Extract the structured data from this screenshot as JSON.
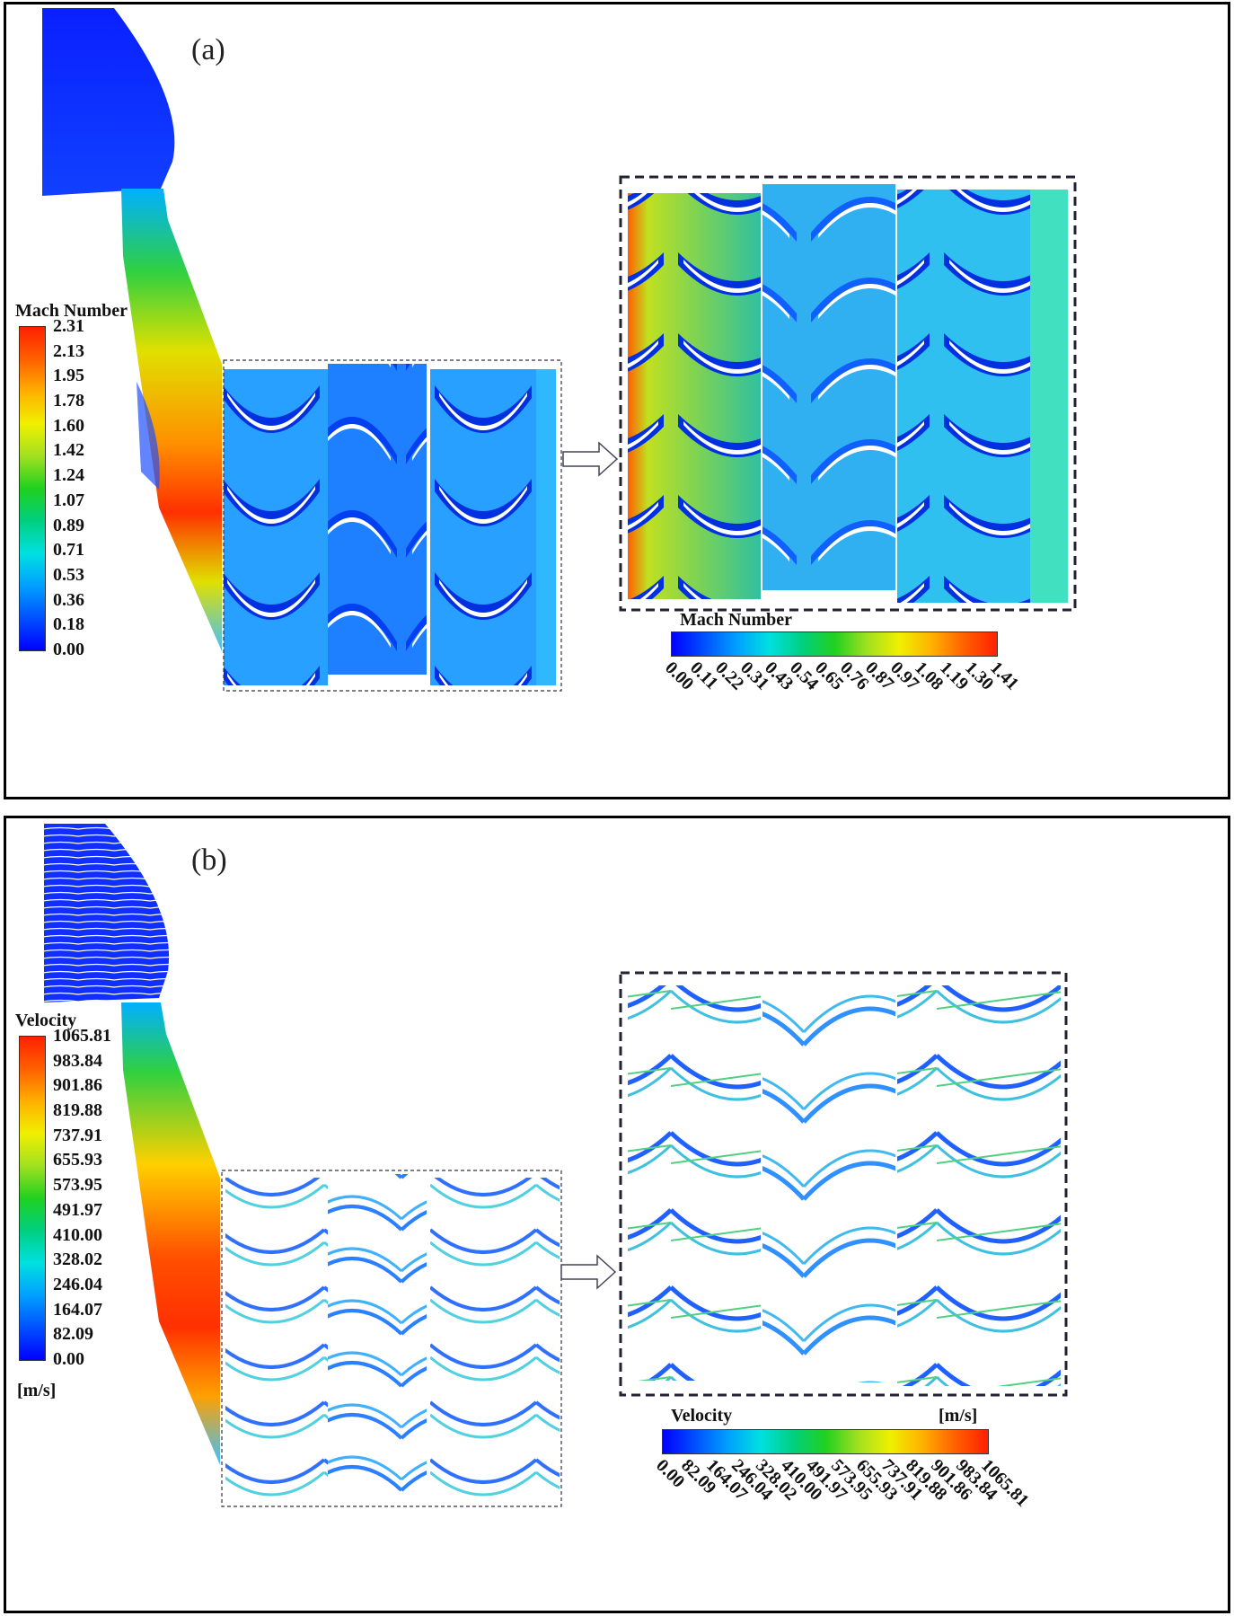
{
  "panels": {
    "a": {
      "label": "(a)",
      "legend_title": "Mach Number",
      "ticks": [
        "2.31",
        "2.13",
        "1.95",
        "1.78",
        "1.60",
        "1.42",
        "1.24",
        "1.07",
        "0.89",
        "0.71",
        "0.53",
        "0.36",
        "0.18",
        "0.00"
      ],
      "zoom_legend_title": "Mach Number",
      "zoom_ticks": [
        "0.00",
        "0.11",
        "0.22",
        "0.31",
        "0.43",
        "0.54",
        "0.65",
        "0.76",
        "0.87",
        "0.97",
        "1.08",
        "1.19",
        "1.30",
        "1.41"
      ]
    },
    "b": {
      "label": "(b)",
      "legend_title": "Velocity",
      "ticks": [
        "1065.81",
        "983.84",
        "901.86",
        "819.88",
        "737.91",
        "655.93",
        "573.95",
        "491.97",
        "410.00",
        "328.02",
        "246.04",
        "164.07",
        "82.09",
        "0.00"
      ],
      "unit": "[m/s]",
      "zoom_legend_title": "Velocity",
      "zoom_unit": "[m/s]",
      "zoom_ticks": [
        "0.00",
        "82.09",
        "164.07",
        "246.04",
        "328.02",
        "410.00",
        "491.97",
        "573.95",
        "655.93",
        "737.91",
        "819.88",
        "901.86",
        "983.84",
        "1065.81"
      ]
    }
  },
  "colormap": [
    "#0000ff",
    "#0050ff",
    "#00a0ff",
    "#00e0e0",
    "#00d080",
    "#20d020",
    "#a0e020",
    "#f0f000",
    "#ffb000",
    "#ff6000",
    "#ff2000"
  ]
}
